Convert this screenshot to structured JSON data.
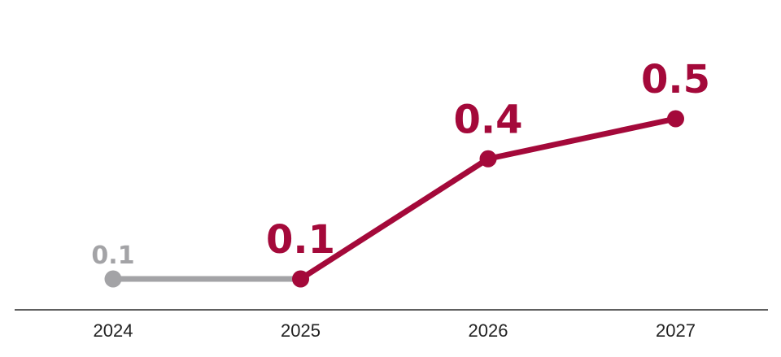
{
  "chart_data": {
    "type": "line",
    "categories": [
      "2024",
      "2025",
      "2026",
      "2027"
    ],
    "series": [
      {
        "values": [
          0.1,
          0.1,
          null,
          null
        ],
        "color": "#a3a3a6",
        "labels": [
          "0.1",
          null,
          null,
          null
        ]
      },
      {
        "values": [
          null,
          0.1,
          0.4,
          0.5
        ],
        "color": "#a4093a",
        "labels": [
          null,
          "0.1",
          "0.4",
          "0.5"
        ]
      }
    ],
    "title": "",
    "xlabel": "",
    "ylabel": "",
    "ylim": [
      0,
      0.6
    ],
    "grid": false,
    "legend": "none"
  }
}
